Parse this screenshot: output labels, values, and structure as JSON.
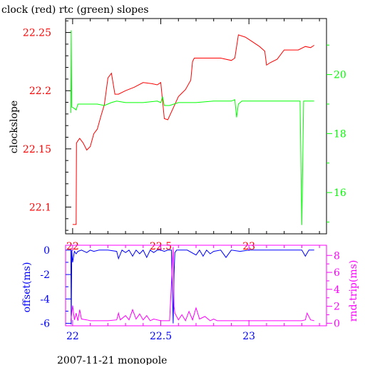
{
  "chart_data": [
    {
      "type": "line",
      "title": "clock (red) rtc (green) slopes",
      "ylabel": "clockslope",
      "xlim": [
        21.96,
        23.44
      ],
      "x_ticks": [
        22,
        22.5,
        23
      ],
      "x_tick_labels": [
        "22",
        "22.5",
        "23"
      ],
      "ylim": [
        22.077,
        22.262
      ],
      "y_ticks": [
        22.1,
        22.15,
        22.2,
        22.25
      ],
      "y_tick_labels": [
        "22.1",
        "22.15",
        "22.2",
        "22.25"
      ],
      "y2lim": [
        14.6,
        21.9
      ],
      "y2_ticks": [
        16,
        18,
        20
      ],
      "y2_tick_labels": [
        "16",
        "18",
        "20"
      ],
      "colors": {
        "axes": "#000000",
        "clock": "#ff0000",
        "rtc": "#00ff00"
      },
      "series": [
        {
          "key": "clock",
          "axis": "left",
          "x": [
            22.0,
            22.02,
            22.022,
            22.03,
            22.04,
            22.06,
            22.08,
            22.1,
            22.12,
            22.14,
            22.16,
            22.18,
            22.2,
            22.22,
            22.24,
            22.25,
            22.26,
            22.3,
            22.35,
            22.4,
            22.45,
            22.48,
            22.5,
            22.52,
            22.54,
            22.57,
            22.6,
            22.64,
            22.67,
            22.68,
            22.69,
            22.72,
            22.8,
            22.84,
            22.9,
            22.92,
            22.94,
            22.98,
            23.02,
            23.06,
            23.09,
            23.1,
            23.12,
            23.16,
            23.2,
            23.28,
            23.32,
            23.35,
            23.37
          ],
          "values": [
            22.085,
            22.085,
            22.155,
            22.157,
            22.159,
            22.155,
            22.149,
            22.152,
            22.163,
            22.167,
            22.178,
            22.188,
            22.211,
            22.215,
            22.197,
            22.197,
            22.197,
            22.2,
            22.203,
            22.207,
            22.206,
            22.205,
            22.207,
            22.176,
            22.175,
            22.185,
            22.195,
            22.201,
            22.209,
            22.225,
            22.228,
            22.228,
            22.228,
            22.228,
            22.226,
            22.228,
            22.248,
            22.246,
            22.242,
            22.238,
            22.234,
            22.222,
            22.224,
            22.227,
            22.235,
            22.235,
            22.238,
            22.237,
            22.239
          ]
        },
        {
          "key": "rtc",
          "axis": "right",
          "x": [
            21.99,
            21.992,
            21.995,
            22.01,
            22.02,
            22.03,
            22.04,
            22.1,
            22.14,
            22.18,
            22.22,
            22.25,
            22.3,
            22.4,
            22.48,
            22.5,
            22.51,
            22.52,
            22.55,
            22.6,
            22.7,
            22.8,
            22.9,
            22.92,
            22.93,
            22.94,
            22.96,
            23.0,
            23.1,
            23.2,
            23.29,
            23.3,
            23.31,
            23.32,
            23.37
          ],
          "values": [
            18.7,
            21.5,
            18.9,
            18.85,
            18.8,
            19.0,
            19.0,
            19.0,
            19.0,
            18.95,
            19.05,
            19.1,
            19.05,
            19.05,
            19.1,
            19.05,
            19.25,
            18.95,
            18.95,
            19.05,
            19.05,
            19.1,
            19.1,
            19.15,
            18.55,
            19.0,
            19.1,
            19.1,
            19.1,
            19.1,
            19.1,
            14.9,
            19.1,
            19.1,
            19.1
          ]
        }
      ]
    },
    {
      "type": "line",
      "ylabel": "offset(ms)",
      "y2label": "rnd-trip(ms)",
      "xlabel": "2007-11-21 monopole",
      "xlim": [
        21.96,
        23.44
      ],
      "x_ticks": [
        22,
        22.5,
        23
      ],
      "x_tick_labels": [
        "22",
        "22.5",
        "23"
      ],
      "ylim": [
        -6.2,
        0.4
      ],
      "y_ticks": [
        0,
        -2,
        -4,
        -6
      ],
      "y_tick_labels": [
        "0",
        "-2",
        "-4",
        "-6"
      ],
      "y2lim": [
        -0.3,
        9.2
      ],
      "y2_ticks": [
        0,
        2,
        4,
        6,
        8
      ],
      "y2_tick_labels": [
        "0",
        "2",
        "4",
        "6",
        "8"
      ],
      "colors": {
        "axes": "#ff00ff",
        "offset": "#0000ff",
        "rnd_trip": "#ff00ff"
      },
      "series": [
        {
          "key": "offset",
          "axis": "left",
          "x": [
            21.99,
            21.992,
            21.995,
            22.0,
            22.01,
            22.02,
            22.03,
            22.05,
            22.08,
            22.1,
            22.12,
            22.15,
            22.2,
            22.25,
            22.26,
            22.28,
            22.3,
            22.32,
            22.34,
            22.36,
            22.38,
            22.4,
            22.42,
            22.44,
            22.46,
            22.48,
            22.5,
            22.52,
            22.54,
            22.56,
            22.57,
            22.575,
            22.58,
            22.59,
            22.6,
            22.65,
            22.7,
            22.72,
            22.74,
            22.76,
            22.78,
            22.8,
            22.84,
            22.87,
            22.9,
            22.95,
            23.0,
            23.05,
            23.1,
            23.15,
            23.2,
            23.25,
            23.3,
            23.32,
            23.34,
            23.37
          ],
          "values": [
            0,
            -6.1,
            0,
            -1.0,
            -0.1,
            -0.3,
            -0.1,
            0,
            -0.2,
            0,
            -0.1,
            0,
            0,
            -0.1,
            -0.7,
            0,
            -0.2,
            0,
            -0.5,
            0,
            -0.3,
            0,
            -0.6,
            0,
            -0.2,
            0,
            0,
            -0.1,
            0,
            0,
            -6.0,
            -2.0,
            -0.2,
            0,
            0,
            0,
            -0.4,
            0,
            -0.5,
            0,
            -0.3,
            -0.1,
            0,
            -0.6,
            0,
            -0.1,
            0,
            0,
            0,
            0,
            0,
            0,
            0,
            -0.5,
            0,
            0
          ]
        },
        {
          "key": "rnd_trip",
          "axis": "right",
          "x": [
            21.99,
            22.0,
            22.01,
            22.02,
            22.03,
            22.04,
            22.05,
            22.08,
            22.1,
            22.15,
            22.2,
            22.25,
            22.26,
            22.27,
            22.3,
            22.32,
            22.34,
            22.36,
            22.38,
            22.4,
            22.42,
            22.44,
            22.46,
            22.5,
            22.55,
            22.57,
            22.575,
            22.58,
            22.6,
            22.62,
            22.64,
            22.66,
            22.68,
            22.7,
            22.72,
            22.75,
            22.78,
            22.8,
            22.82,
            22.85,
            22.9,
            22.95,
            23.0,
            23.05,
            23.1,
            23.15,
            23.2,
            23.25,
            23.3,
            23.32,
            23.33,
            23.35,
            23.37
          ],
          "values": [
            0.3,
            2.1,
            0.4,
            1.2,
            0.3,
            1.6,
            0.5,
            0.4,
            0.3,
            0.3,
            0.3,
            0.4,
            1.2,
            0.4,
            0.9,
            0.4,
            1.6,
            0.5,
            1.1,
            0.4,
            0.9,
            0.3,
            0.5,
            0.3,
            0.3,
            9.0,
            2.0,
            1.2,
            0.4,
            1.0,
            0.3,
            1.4,
            0.4,
            1.8,
            0.5,
            0.8,
            0.3,
            0.5,
            0.3,
            0.3,
            0.3,
            0.3,
            0.3,
            0.3,
            0.3,
            0.3,
            0.3,
            0.3,
            0.3,
            0.4,
            1.2,
            0.4,
            0.3
          ]
        }
      ]
    }
  ]
}
